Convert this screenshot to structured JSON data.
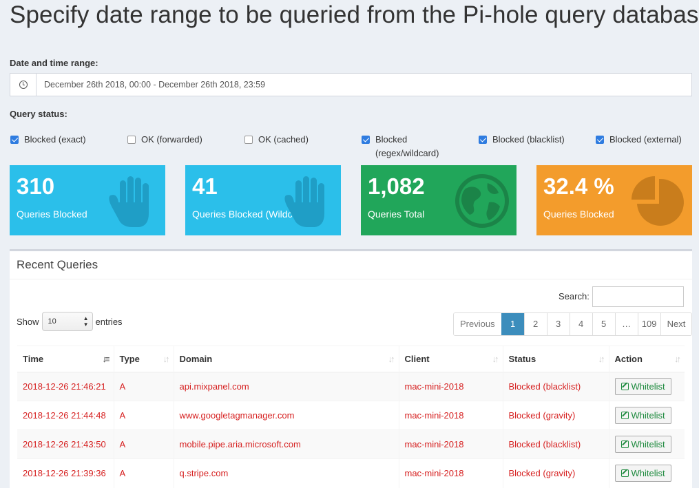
{
  "page_title": "Specify date range to be queried from the Pi-hole query database",
  "date_range": {
    "label": "Date and time range:",
    "value": "December 26th 2018, 00:00 - December 26th 2018, 23:59"
  },
  "query_status": {
    "label": "Query status:",
    "options": [
      {
        "line1": "Blocked (exact)",
        "line2": "",
        "checked": true
      },
      {
        "line1": "OK (forwarded)",
        "line2": "",
        "checked": false
      },
      {
        "line1": "OK (cached)",
        "line2": "",
        "checked": false
      },
      {
        "line1": "Blocked",
        "line2": "(regex/wildcard)",
        "checked": true
      },
      {
        "line1": "Blocked (blacklist)",
        "line2": "",
        "checked": true
      },
      {
        "line1": "Blocked (external)",
        "line2": "",
        "checked": true
      }
    ]
  },
  "stats": [
    {
      "value": "310",
      "caption": "Queries Blocked",
      "icon": "hand-icon",
      "color": "#2bbfea"
    },
    {
      "value": "41",
      "caption": "Queries Blocked (Wildcards)",
      "icon": "hand-icon",
      "color": "#2bbfea"
    },
    {
      "value": "1,082",
      "caption": "Queries Total",
      "icon": "globe-icon",
      "color": "#21a65a"
    },
    {
      "value": "32.4 %",
      "caption": "Queries Blocked",
      "icon": "pie-chart-icon",
      "color": "#f39c2c"
    }
  ],
  "recent": {
    "title": "Recent Queries",
    "search_label": "Search:",
    "search_value": "",
    "show_label": "Show",
    "entries_label": "entries",
    "page_size": "10",
    "pagination": {
      "previous": "Previous",
      "pages": [
        "1",
        "2",
        "3",
        "4",
        "5",
        "…",
        "109"
      ],
      "active": "1",
      "next": "Next"
    },
    "columns": [
      "Time",
      "Type",
      "Domain",
      "Client",
      "Status",
      "Action"
    ],
    "rows": [
      {
        "time": "2018-12-26 21:46:21",
        "type": "A",
        "domain": "api.mixpanel.com",
        "client": "mac-mini-2018",
        "status": "Blocked (blacklist)",
        "action": "Whitelist"
      },
      {
        "time": "2018-12-26 21:44:48",
        "type": "A",
        "domain": "www.googletagmanager.com",
        "client": "mac-mini-2018",
        "status": "Blocked (gravity)",
        "action": "Whitelist"
      },
      {
        "time": "2018-12-26 21:43:50",
        "type": "A",
        "domain": "mobile.pipe.aria.microsoft.com",
        "client": "mac-mini-2018",
        "status": "Blocked (blacklist)",
        "action": "Whitelist"
      },
      {
        "time": "2018-12-26 21:39:36",
        "type": "A",
        "domain": "q.stripe.com",
        "client": "mac-mini-2018",
        "status": "Blocked (gravity)",
        "action": "Whitelist"
      }
    ]
  }
}
